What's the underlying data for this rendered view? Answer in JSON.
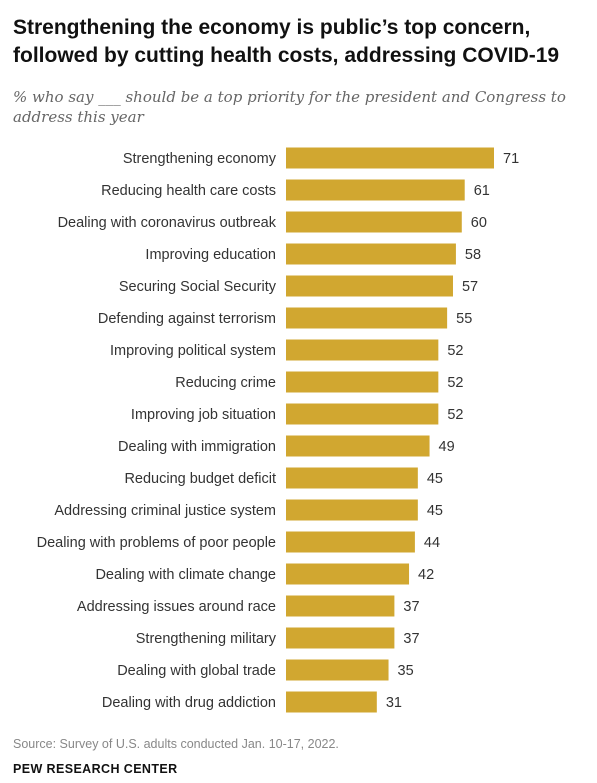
{
  "header": {
    "title_line1": "Strengthening the economy is public’s top concern,",
    "title_line2": "followed by cutting health costs, addressing COVID-19",
    "subtitle_line1": "% who say ___ should be a top priority for the president and Congress to",
    "subtitle_line2": "address this year"
  },
  "chart_data": {
    "type": "bar",
    "orientation": "horizontal",
    "categories": [
      "Strengthening economy",
      "Reducing health care costs",
      "Dealing with coronavirus outbreak",
      "Improving education",
      "Securing Social Security",
      "Defending against terrorism",
      "Improving political system",
      "Reducing crime",
      "Improving job situation",
      "Dealing with immigration",
      "Reducing budget deficit",
      "Addressing criminal justice system",
      "Dealing with problems of poor people",
      "Dealing with climate change",
      "Addressing issues around race",
      "Strengthening military",
      "Dealing with global trade",
      "Dealing with drug addiction"
    ],
    "values": [
      71,
      61,
      60,
      58,
      57,
      55,
      52,
      52,
      52,
      49,
      45,
      45,
      44,
      42,
      37,
      37,
      35,
      31
    ],
    "value_labels": [
      "71",
      "61",
      "60",
      "58",
      "57",
      "55",
      "52",
      "52",
      "52",
      "49",
      "45",
      "45",
      "44",
      "42",
      "37",
      "37",
      "35",
      "31"
    ],
    "xlim": [
      0,
      71
    ],
    "bar_color": "#d1a730",
    "grid": false,
    "legend": "none"
  },
  "footer": {
    "source": "Source: Survey of U.S. adults conducted Jan. 10-17, 2022.",
    "org": "PEW RESEARCH CENTER"
  }
}
